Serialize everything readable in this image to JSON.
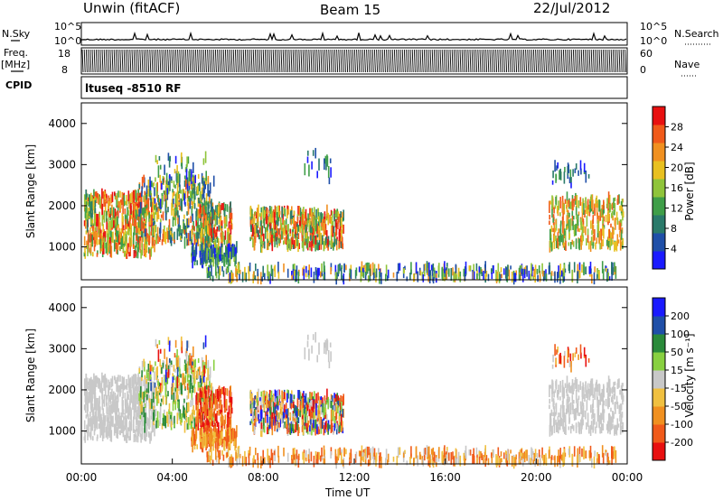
{
  "header": {
    "station": "Unwin (fitACF)",
    "beam": "Beam 15",
    "date": "22/Jul/2012"
  },
  "side_labels": {
    "nsky": "N.Sky",
    "freq_line1": "Freq.",
    "freq_line2": "[MHz]",
    "cpid": "CPID",
    "nsearch": "N.Search",
    "nave": "Nave"
  },
  "cpid_text": "ltuseq -8510 RF",
  "colors": {
    "power": [
      "#1a1aff",
      "#1f4fa8",
      "#2a7a6a",
      "#3f9e48",
      "#8fc43a",
      "#e8c020",
      "#f09020",
      "#f05a1a",
      "#e81010"
    ],
    "velocity": [
      "#e81010",
      "#f05a1a",
      "#f09020",
      "#f0c040",
      "#c8c8c8",
      "#88d040",
      "#2a8a3a",
      "#1f4fa8",
      "#1a1aff"
    ]
  },
  "chart_data": [
    {
      "type": "line",
      "name": "nsky-nsearch",
      "ylabels_left": [
        "10^5",
        "10^0"
      ],
      "ylabels_right": [
        "10^5",
        "10^0"
      ],
      "xlim": [
        "00:00",
        "00:00"
      ]
    },
    {
      "type": "line",
      "name": "freq-nave",
      "ylabels_left": [
        "18",
        "8"
      ],
      "ylabels_right": [
        "60",
        "0"
      ],
      "xlim": [
        "00:00",
        "00:00"
      ]
    },
    {
      "type": "heatmap",
      "name": "power",
      "ylabel": "Slant Range [km]",
      "yticks": [
        "1000",
        "2000",
        "3000",
        "4000"
      ],
      "ylim": [
        200,
        4500
      ],
      "colorbar_label": "Power [dB]",
      "colorbar_ticks": [
        "4",
        "8",
        "12",
        "16",
        "20",
        "24",
        "28"
      ],
      "colorbar_range": [
        0,
        32
      ]
    },
    {
      "type": "heatmap",
      "name": "velocity",
      "ylabel": "Slant Range [km]",
      "yticks": [
        "1000",
        "2000",
        "3000",
        "4000"
      ],
      "ylim": [
        200,
        4500
      ],
      "xlabel": "Time UT",
      "xticks": [
        "00:00",
        "04:00",
        "08:00",
        "12:00",
        "16:00",
        "20:00",
        "00:00"
      ],
      "colorbar_label": "Velocity [m s⁻¹]",
      "colorbar_ticks": [
        "-200",
        "-100",
        "-50",
        "-15",
        "15",
        "50",
        "100",
        "200"
      ]
    }
  ]
}
